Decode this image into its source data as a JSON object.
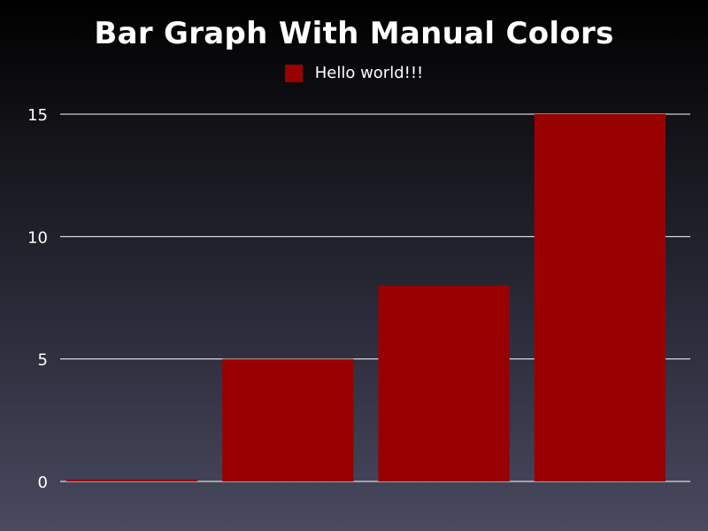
{
  "chart_data": {
    "type": "bar",
    "title": "Bar Graph With Manual Colors",
    "categories": [
      "",
      "",
      "",
      ""
    ],
    "series": [
      {
        "name": "Hello world!!!",
        "color": "#990000",
        "values": [
          0,
          5,
          8,
          15
        ]
      }
    ],
    "yticks": [
      0,
      5,
      10,
      15
    ],
    "ylim": [
      0,
      15
    ],
    "grid": "horizontal",
    "legend_position": "top-center"
  }
}
